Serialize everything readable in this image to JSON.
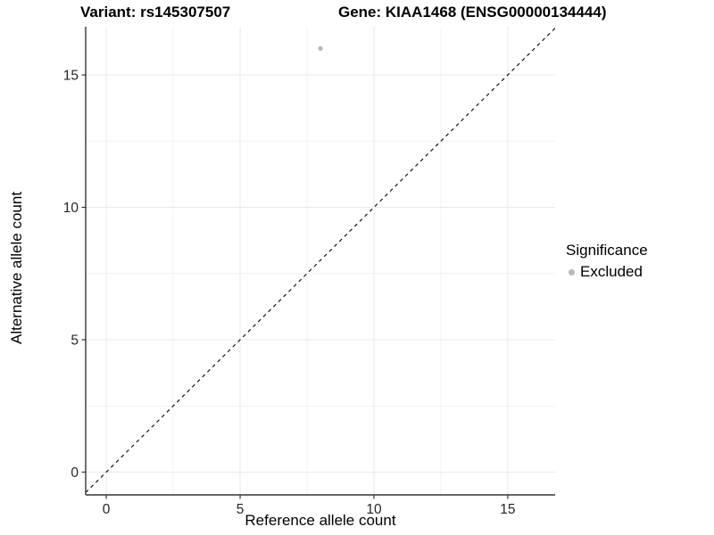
{
  "colors": {
    "background": "#ffffff",
    "grid_major": "#e8e8e8",
    "grid_minor": "#f2f2f2",
    "axis_line": "#333333",
    "tick_text": "#262626",
    "title_text": "#000000",
    "point": "#b9b9b9"
  },
  "chart_data": {
    "type": "scatter",
    "titles": {
      "left": "Variant: rs145307507",
      "right": "Gene: KIAA1468 (ENSG00000134444)"
    },
    "xlabel": "Reference allele count",
    "ylabel": "Alternative allele count",
    "xlim": [
      -0.77,
      16.77
    ],
    "ylim": [
      -0.86,
      16.82
    ],
    "x_ticks": [
      0,
      5,
      10,
      15
    ],
    "y_ticks": [
      0,
      5,
      10,
      15
    ],
    "x_minor_gridlines": [
      2.5,
      7.5,
      12.5
    ],
    "y_minor_gridlines": [
      2.5,
      7.5,
      12.5
    ],
    "grid": "major and minor gridlines, light gray on white, no top/right panel border",
    "points": [
      {
        "x": 8,
        "y": 16,
        "series": "Excluded"
      }
    ],
    "identity_line": {
      "equation": "y = x",
      "linetype": "dashed",
      "color": "#000000"
    },
    "legend": {
      "title": "Significance",
      "position": "right",
      "items": [
        {
          "label": "Excluded",
          "color": "#b9b9b9"
        }
      ]
    }
  }
}
